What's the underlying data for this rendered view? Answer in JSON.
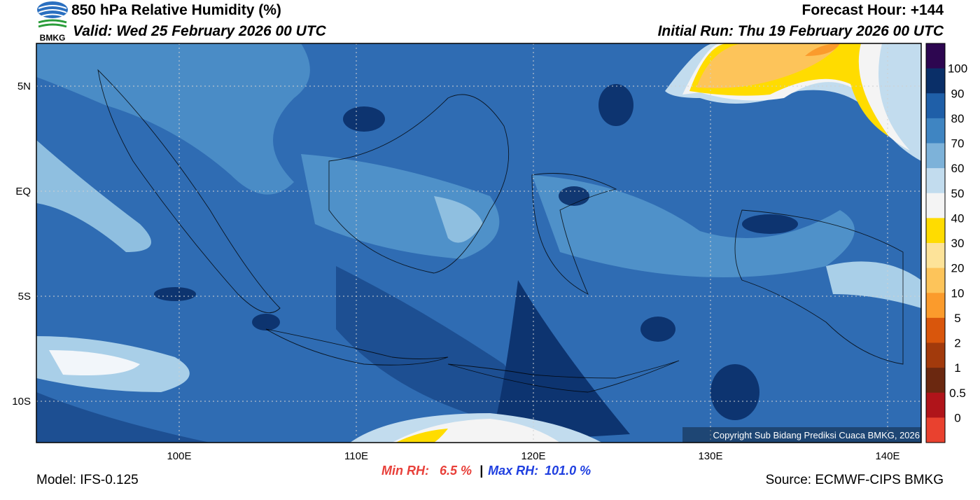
{
  "header": {
    "logo": "BMKG",
    "title": "850 hPa Relative Humidity (%)",
    "valid": "Valid: Wed 25 February 2026 00 UTC",
    "forecast_hour": "Forecast Hour: +144",
    "initial_run": "Initial Run: Thu 19 February 2026 00 UTC"
  },
  "map": {
    "lat_labels": [
      "5N",
      "EQ",
      "5S",
      "10S"
    ],
    "lon_labels": [
      "100E",
      "110E",
      "120E",
      "130E",
      "140E"
    ],
    "copyright": "Copyright Sub Bidang Prediksi Cuaca BMKG, 2026"
  },
  "colorbar": {
    "colors": [
      "#2d0650",
      "#0a2f68",
      "#1f5fa8",
      "#3f85c2",
      "#7db2d9",
      "#c2dcee",
      "#f4f4f4",
      "#ffdc00",
      "#fde399",
      "#fdc45a",
      "#fb9b2c",
      "#d9560c",
      "#a23a0c",
      "#6b2810",
      "#b0141a",
      "#e9412f"
    ],
    "labels": [
      "100",
      "90",
      "80",
      "70",
      "60",
      "50",
      "40",
      "30",
      "20",
      "10",
      "5",
      "2",
      "1",
      "0.5",
      "0"
    ]
  },
  "footer": {
    "model": "Model: IFS-0.125",
    "min_label": "Min RH:",
    "min_value": "6.5 %",
    "separator": "|",
    "max_label": "Max RH:",
    "max_value": "101.0 %",
    "source": "Source: ECMWF-CIPS BMKG"
  }
}
